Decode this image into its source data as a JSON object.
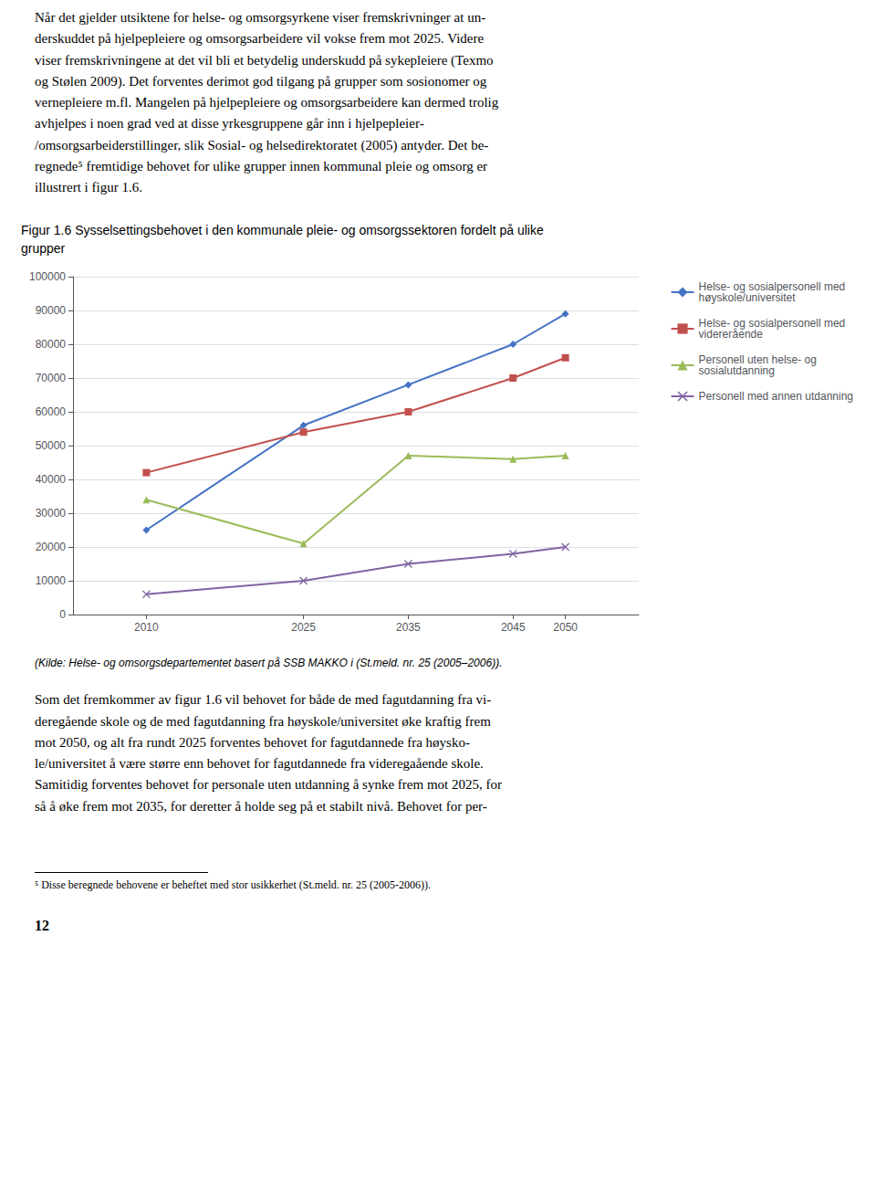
{
  "chart_data": {
    "type": "line",
    "title": "Figur 1.6 Sysselsettingsbehovet i den kommunale pleie- og omsorgssektoren fordelt på ulike\ngrupper",
    "x": [
      2010,
      2025,
      2035,
      2045,
      2050
    ],
    "xlim": [
      2003,
      2057
    ],
    "xticks": [
      2010,
      2025,
      2035,
      2045,
      2050
    ],
    "ylim": [
      0,
      100000
    ],
    "yticks": [
      0,
      10000,
      20000,
      30000,
      40000,
      50000,
      60000,
      70000,
      80000,
      90000,
      100000
    ],
    "grid": true,
    "legend": "right",
    "series": [
      {
        "name": "Helse- og sosialpersonell med\nhøyskole/universitet",
        "color": "#4472C4",
        "marker": "diamond",
        "values": [
          25000,
          56000,
          68000,
          80000,
          89000
        ]
      },
      {
        "name": "Helse- og sosialpersonell med\nvidereгående",
        "color": "#C0504D",
        "marker": "square",
        "values": [
          42000,
          54000,
          60000,
          70000,
          76000
        ]
      },
      {
        "name": "Personell uten helse- og\nsosialutdanning",
        "color": "#9BBB59",
        "marker": "triangle",
        "values": [
          34000,
          21000,
          47000,
          46000,
          47000
        ]
      },
      {
        "name": "Personell med annen utdanning",
        "color": "#8064A2",
        "marker": "x",
        "values": [
          6000,
          10000,
          15000,
          18000,
          20000
        ]
      }
    ],
    "source": "(Kilde: Helse- og omsorgsdepartementet basert på SSB MAKKO i (St.meld. nr. 25 (2005–2006)).",
    "body_text_top": "Når det gjelder utsiktene for helse- og omsorgsyrkene viser fremskrivninger at un-\nderskuddet på hjelpepleiere og omsorgsarbeidere vil vokse frem mot 2025. Videre\nviser fremskrivningene at det vil bli et betydelig underskudd på sykepleiere (Texmo\nog Stølen 2009). Det forventes derimot god tilgang på grupper som sosionomer og\nvernepleiere m.fl. Mangelen på hjelpepleiere og omsorgsarbeidere kan dermed trolig\navhjelpes i noen grad ved at disse yrkesgruppene går inn i hjelpepleier-\n/omsorgsarbeiderstillinger, slik Sosial- og helsedirektoratet (2005) antyder. Det be-\nregnede⁵ fremtidige behovet for ulike grupper innen kommunal pleie og omsorg er\nillustrert i figur 1.6.",
    "body_text_bottom": "Som det fremkommer av figur 1.6 vil behovet for både de med fagutdanning fra vi-\nderegående skole og de med fagutdanning fra høyskole/universitet øke kraftig frem\nmot 2050, og alt fra rundt 2025 forventes behovet for fagutdannede fra høysko-\nle/universitet å være større enn behovet for fagutdannede fra videregaående skole.\nSamitidig forventes behovet for personale uten utdanning å synke frem mot 2025, for\nså å øke frem mot 2035, for deretter å holde seg på et stabilt nivå. Behovet for per-",
    "footnote": "⁵ Disse beregnede behovene er beheftet med stor usikkerhet (St.meld. nr. 25 (2005-2006)).",
    "page_number": "12"
  }
}
